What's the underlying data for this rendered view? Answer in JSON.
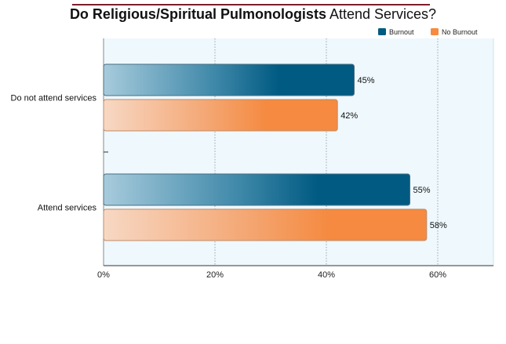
{
  "title": {
    "bold_part": "Do Religious/Spiritual Pulmonologists",
    "normal_part": "Attend Services?"
  },
  "colors": {
    "burnout": "#005a82",
    "no_burnout": "#f58a40",
    "title_rule": "#7a1f2b",
    "plot_bg": "#eef8fd"
  },
  "chart_data": {
    "type": "bar",
    "orientation": "horizontal",
    "title": "Do Religious/Spiritual Pulmonologists Attend Services?",
    "categories": [
      "Do not attend services",
      "Attend services"
    ],
    "series": [
      {
        "name": "Burnout",
        "values": [
          45,
          55
        ],
        "labels": [
          "45%",
          "55%"
        ]
      },
      {
        "name": "No Burnout",
        "values": [
          42,
          58
        ],
        "labels": [
          "42%",
          "58%"
        ]
      }
    ],
    "xlim": [
      0,
      70
    ],
    "xticks": [
      0,
      20,
      40,
      60
    ],
    "xtick_labels": [
      "0%",
      "20%",
      "40%",
      "60%"
    ],
    "grid": "vertical dotted",
    "legend_position": "top-right"
  }
}
